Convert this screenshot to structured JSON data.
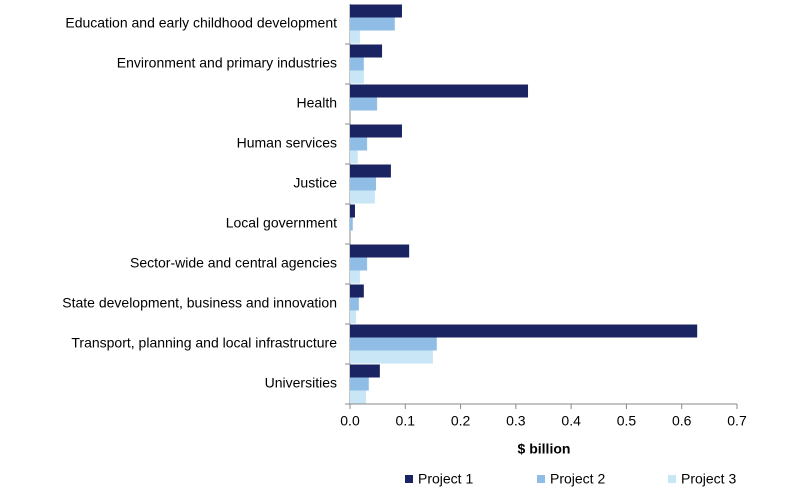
{
  "chart_data": {
    "type": "hbar",
    "x_label": "$ billion",
    "categories": [
      "Education and early childhood development",
      "Environment and primary industries",
      "Health",
      "Human services",
      "Justice",
      "Local government",
      "Sector-wide and central agencies",
      "State development, business and innovation",
      "Transport, planning and local infrastructure",
      "Universities"
    ],
    "series": [
      {
        "name": "Project 1",
        "color": "#1b2462",
        "values": [
          0.094,
          0.058,
          0.322,
          0.094,
          0.074,
          0.009,
          0.107,
          0.025,
          0.628,
          0.054
        ]
      },
      {
        "name": "Project 2",
        "color": "#8fbde6",
        "values": [
          0.081,
          0.025,
          0.049,
          0.031,
          0.047,
          0.005,
          0.031,
          0.016,
          0.157,
          0.034
        ]
      },
      {
        "name": "Project 3",
        "color": "#c9e6f7",
        "values": [
          0.018,
          0.025,
          0,
          0.014,
          0.045,
          0,
          0.018,
          0.011,
          0.15,
          0.029
        ]
      }
    ],
    "xlim": [
      0,
      0.7
    ],
    "xticks": [
      {
        "value": 0,
        "label": "0.0"
      },
      0.1,
      0.2,
      0.3,
      0.4,
      0.5,
      0.6,
      0.7
    ],
    "legend": "bottom"
  }
}
